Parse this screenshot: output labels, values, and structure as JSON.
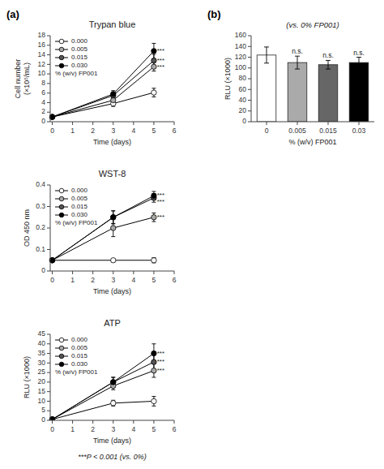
{
  "chart_data": [
    {
      "type": "line",
      "panel_label": "(a)",
      "title": "Trypan blue",
      "xlabel": "Time (days)",
      "ylabel": "Cell number\n(×10⁵/mL)",
      "xlim": [
        -0.1,
        6
      ],
      "ylim": [
        0,
        18
      ],
      "xticks": [
        0,
        1,
        2,
        3,
        4,
        5,
        6
      ],
      "yticks": [
        0,
        2,
        4,
        6,
        8,
        10,
        12,
        14,
        16,
        18
      ],
      "grid": false,
      "legend": "upper left",
      "legend_title": "% (w/v) FP001",
      "series": [
        {
          "name": "0.000",
          "color": "white",
          "marker": "circle",
          "x": [
            0,
            3,
            5
          ],
          "values": [
            1.0,
            3.8,
            6.1
          ],
          "errors": [
            0.1,
            0.6,
            0.9
          ]
        },
        {
          "name": "0.005",
          "color": "#aaaaaa",
          "marker": "circle",
          "x": [
            0,
            3,
            5
          ],
          "values": [
            1.0,
            4.5,
            11.5
          ],
          "errors": [
            0.1,
            0.5,
            0.9
          ]
        },
        {
          "name": "0.015",
          "color": "#555555",
          "marker": "circle",
          "x": [
            0,
            3,
            5
          ],
          "values": [
            1.0,
            5.5,
            12.8
          ],
          "errors": [
            0.1,
            0.6,
            1.3
          ]
        },
        {
          "name": "0.030",
          "color": "black",
          "marker": "circle",
          "x": [
            0,
            3,
            5
          ],
          "values": [
            1.0,
            5.8,
            14.8
          ],
          "errors": [
            0.1,
            0.7,
            1.6
          ]
        }
      ],
      "annotations": [
        {
          "x": 5.15,
          "y": 14.8,
          "text": "***"
        },
        {
          "x": 5.15,
          "y": 12.8,
          "text": "***"
        },
        {
          "x": 5.15,
          "y": 11.5,
          "text": "***"
        }
      ]
    },
    {
      "type": "line",
      "title": "WST-8",
      "xlabel": "Time (days)",
      "ylabel": "OD 450 nm",
      "xlim": [
        -0.1,
        6
      ],
      "ylim": [
        0,
        0.4
      ],
      "xticks": [
        0,
        1,
        2,
        3,
        4,
        5,
        6
      ],
      "yticks": [
        0,
        0.1,
        0.2,
        0.3,
        0.4
      ],
      "grid": false,
      "legend": "upper left",
      "legend_title": "% (w/v) FP001",
      "series": [
        {
          "name": "0.000",
          "color": "white",
          "marker": "circle",
          "x": [
            0,
            3,
            5
          ],
          "values": [
            0.05,
            0.05,
            0.05
          ],
          "errors": [
            0.005,
            0.008,
            0.012
          ]
        },
        {
          "name": "0.005",
          "color": "#aaaaaa",
          "marker": "circle",
          "x": [
            0,
            3,
            5
          ],
          "values": [
            0.05,
            0.2,
            0.25
          ],
          "errors": [
            0.005,
            0.04,
            0.02
          ]
        },
        {
          "name": "0.015",
          "color": "#555555",
          "marker": "circle",
          "x": [
            0,
            3,
            5
          ],
          "values": [
            0.05,
            0.25,
            0.34
          ],
          "errors": [
            0.005,
            0.03,
            0.02
          ]
        },
        {
          "name": "0.030",
          "color": "black",
          "marker": "circle",
          "x": [
            0,
            3,
            5
          ],
          "values": [
            0.05,
            0.25,
            0.35
          ],
          "errors": [
            0.005,
            0.03,
            0.02
          ]
        }
      ],
      "annotations": [
        {
          "x": 5.15,
          "y": 0.35,
          "text": "***"
        },
        {
          "x": 5.15,
          "y": 0.34,
          "text": "***"
        },
        {
          "x": 5.15,
          "y": 0.25,
          "text": "***"
        }
      ]
    },
    {
      "type": "line",
      "title": "ATP",
      "xlabel": "Time (days)",
      "ylabel": "RLU (×1000)",
      "xlim": [
        -0.1,
        6
      ],
      "ylim": [
        0,
        45
      ],
      "xticks": [
        0,
        1,
        2,
        3,
        4,
        5,
        6
      ],
      "yticks": [
        0,
        5,
        10,
        15,
        20,
        25,
        30,
        35,
        40,
        45
      ],
      "grid": false,
      "legend": "upper left",
      "legend_title": "% (w/v) FP001",
      "footnote": "***P < 0.001 (vs. 0%)",
      "series": [
        {
          "name": "0.000",
          "color": "white",
          "marker": "circle",
          "x": [
            0,
            3,
            5
          ],
          "values": [
            0.5,
            9.0,
            10.0
          ],
          "errors": [
            0.2,
            1.5,
            2.5
          ]
        },
        {
          "name": "0.005",
          "color": "#aaaaaa",
          "marker": "circle",
          "x": [
            0,
            3,
            5
          ],
          "values": [
            0.5,
            18.0,
            26.0
          ],
          "errors": [
            0.2,
            2.0,
            3.5
          ]
        },
        {
          "name": "0.015",
          "color": "#555555",
          "marker": "circle",
          "x": [
            0,
            3,
            5
          ],
          "values": [
            0.5,
            20.0,
            30.5
          ],
          "errors": [
            0.2,
            2.5,
            4.0
          ]
        },
        {
          "name": "0.030",
          "color": "black",
          "marker": "circle",
          "x": [
            0,
            3,
            5
          ],
          "values": [
            0.5,
            20.0,
            35.0
          ],
          "errors": [
            0.2,
            2.5,
            5.0
          ]
        }
      ],
      "annotations": [
        {
          "x": 5.15,
          "y": 35.0,
          "text": "***"
        },
        {
          "x": 5.15,
          "y": 30.5,
          "text": "***"
        },
        {
          "x": 5.15,
          "y": 26.0,
          "text": "***"
        }
      ]
    },
    {
      "type": "bar",
      "panel_label": "(b)",
      "title": "(vs. 0% FP001)",
      "xlabel": "% (w/v) FP001",
      "ylabel": "RLU (×1000)",
      "categories": [
        "0",
        "0.005",
        "0.015",
        "0.03"
      ],
      "values": [
        124,
        110,
        106,
        110
      ],
      "errors": [
        15,
        12,
        8,
        10
      ],
      "colors": [
        "white",
        "#aaaaaa",
        "#666666",
        "black"
      ],
      "ylim": [
        0,
        160
      ],
      "yticks": [
        0,
        20,
        40,
        60,
        80,
        100,
        120,
        140,
        160
      ],
      "grid": false,
      "annotations": [
        null,
        "n.s.",
        "n.s.",
        "n.s."
      ]
    }
  ]
}
